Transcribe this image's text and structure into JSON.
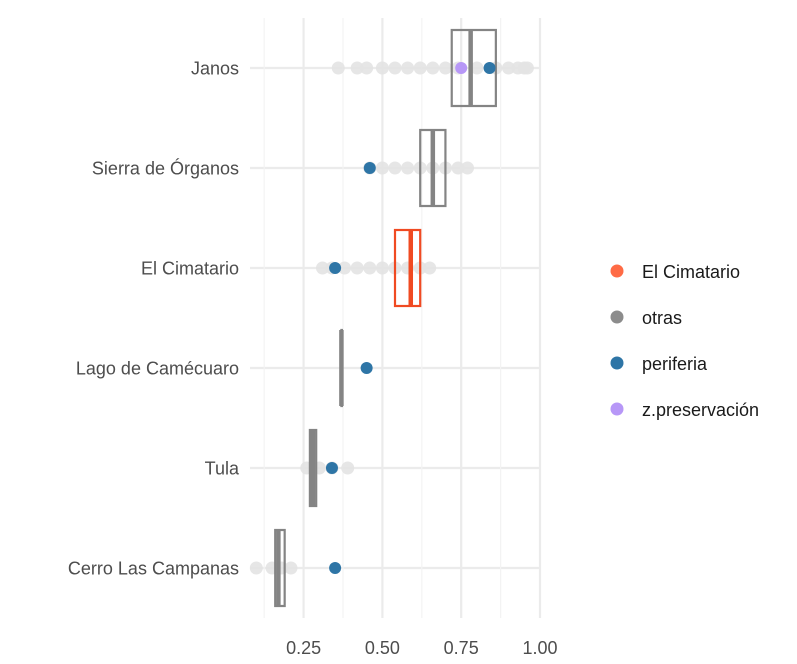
{
  "chart_data": {
    "type": "boxplot",
    "title": "",
    "xlabel": "",
    "ylabel": "",
    "xlim": [
      0.08,
      1.0
    ],
    "x_ticks": [
      0.25,
      0.5,
      0.75,
      1.0
    ],
    "x_tick_labels": [
      "0.25",
      "0.50",
      "0.75",
      "1.00"
    ],
    "grid": true,
    "categories": [
      "Janos",
      "Sierra de Órganos",
      "El Cimatario",
      "Lago de Camécuaro",
      "Tula",
      "Cerro Las Campanas"
    ],
    "boxes": [
      {
        "category": "Janos",
        "group": "otras",
        "q1": 0.72,
        "median": 0.78,
        "q3": 0.86
      },
      {
        "category": "Sierra de Órganos",
        "group": "otras",
        "q1": 0.62,
        "median": 0.66,
        "q3": 0.7
      },
      {
        "category": "El Cimatario",
        "group": "El Cimatario",
        "q1": 0.54,
        "median": 0.59,
        "q3": 0.62
      },
      {
        "category": "Lago de Camécuaro",
        "group": "otras",
        "q1": 0.37,
        "median": 0.37,
        "q3": 0.37
      },
      {
        "category": "Tula",
        "group": "otras",
        "q1": 0.27,
        "median": 0.28,
        "q3": 0.29
      },
      {
        "category": "Cerro Las Campanas",
        "group": "otras",
        "q1": 0.16,
        "median": 0.17,
        "q3": 0.19
      }
    ],
    "background_points": [
      {
        "category": "Janos",
        "x": [
          0.36,
          0.42,
          0.45,
          0.5,
          0.54,
          0.58,
          0.62,
          0.66,
          0.7,
          0.74,
          0.8,
          0.86,
          0.9,
          0.93,
          0.95,
          0.96
        ]
      },
      {
        "category": "Sierra de Órganos",
        "x": [
          0.46,
          0.5,
          0.54,
          0.58,
          0.62,
          0.66,
          0.7,
          0.74,
          0.77
        ]
      },
      {
        "category": "El Cimatario",
        "x": [
          0.31,
          0.34,
          0.38,
          0.42,
          0.46,
          0.5,
          0.54,
          0.58,
          0.62,
          0.65
        ]
      },
      {
        "category": "Tula",
        "x": [
          0.26,
          0.3,
          0.34,
          0.39
        ]
      },
      {
        "category": "Cerro Las Campanas",
        "x": [
          0.1,
          0.15,
          0.18,
          0.21
        ]
      }
    ],
    "series": [
      {
        "name": "periferia",
        "points": [
          {
            "category": "Janos",
            "x": 0.84
          },
          {
            "category": "Sierra de Órganos",
            "x": 0.46
          },
          {
            "category": "El Cimatario",
            "x": 0.35
          },
          {
            "category": "Lago de Camécuaro",
            "x": 0.45
          },
          {
            "category": "Tula",
            "x": 0.34
          },
          {
            "category": "Cerro Las Campanas",
            "x": 0.35
          }
        ]
      },
      {
        "name": "z.preservación",
        "points": [
          {
            "category": "Janos",
            "x": 0.75
          }
        ]
      }
    ],
    "legend": {
      "position": "right",
      "entries": [
        {
          "label": "El Cimatario",
          "color": "#FF6B45"
        },
        {
          "label": "otras",
          "color": "#8C8C8C"
        },
        {
          "label": "periferia",
          "color": "#2E75A6"
        },
        {
          "label": "z.preservación",
          "color": "#B797F7"
        }
      ]
    },
    "colors": {
      "El Cimatario": "#F04A22",
      "otras": "#848484",
      "periferia": "#2E75A6",
      "z.preservación": "#B797F7",
      "background_points": "#E3E3E3",
      "grid": "#EBEBEB"
    }
  }
}
